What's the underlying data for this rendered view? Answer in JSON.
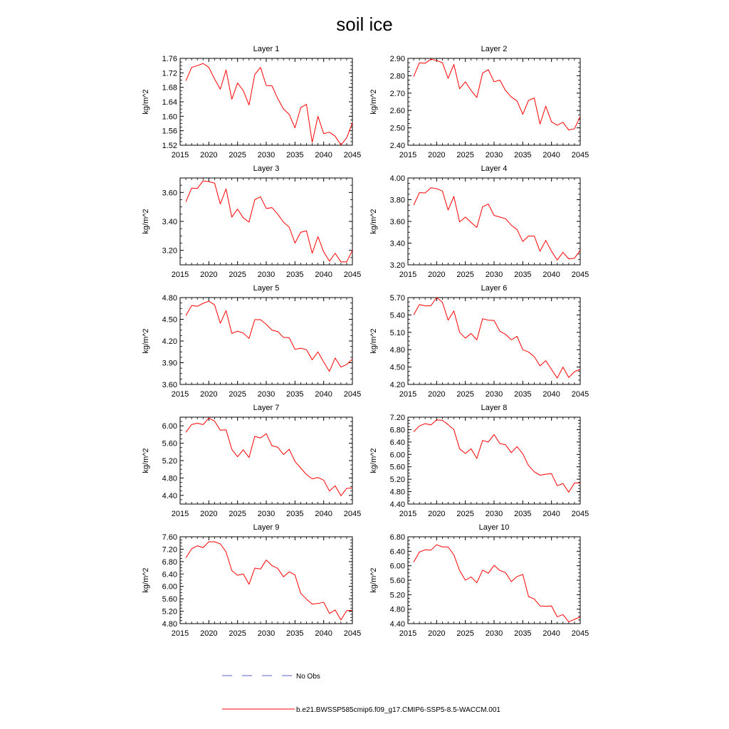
{
  "title": "soil ice",
  "legend": {
    "entries": [
      {
        "label": "No Obs",
        "color": "#5a5fd6",
        "dash": true
      },
      {
        "label": "b.e21.BWSSP585cmip6.f09_g17.CMIP6-SSP5-8.5-WACCM.001",
        "color": "#ff0000",
        "dash": false
      }
    ]
  },
  "chart_data": [
    {
      "type": "line",
      "title": "Layer 1",
      "ylabel": "kg/m^2",
      "xlim": [
        2015,
        2045
      ],
      "ylim": [
        1.52,
        1.76
      ],
      "xticks": [
        2015,
        2020,
        2025,
        2030,
        2035,
        2040,
        2045
      ],
      "yticks": [
        1.52,
        1.56,
        1.6,
        1.64,
        1.68,
        1.72,
        1.76
      ],
      "ydec": 2,
      "series": [
        {
          "color": "#ff0000",
          "x": [
            2016,
            2017,
            2018,
            2019,
            2020,
            2021,
            2022,
            2023,
            2024,
            2025,
            2026,
            2027,
            2028,
            2029,
            2030,
            2031,
            2032,
            2033,
            2034,
            2035,
            2036,
            2037,
            2038,
            2039,
            2040,
            2041,
            2042,
            2043,
            2044,
            2045
          ],
          "values": [
            1.698,
            1.735,
            1.74,
            1.746,
            1.735,
            1.703,
            1.675,
            1.728,
            1.647,
            1.692,
            1.671,
            1.631,
            1.715,
            1.735,
            1.685,
            1.684,
            1.649,
            1.62,
            1.605,
            1.568,
            1.624,
            1.633,
            1.528,
            1.6,
            1.552,
            1.556,
            1.545,
            1.521,
            1.54,
            1.582
          ]
        }
      ]
    },
    {
      "type": "line",
      "title": "Layer 2",
      "ylabel": "kg/m^2",
      "xlim": [
        2015,
        2045
      ],
      "ylim": [
        2.4,
        2.9
      ],
      "xticks": [
        2015,
        2020,
        2025,
        2030,
        2035,
        2040,
        2045
      ],
      "yticks": [
        2.4,
        2.5,
        2.6,
        2.7,
        2.8,
        2.9
      ],
      "ydec": 2,
      "series": [
        {
          "color": "#ff0000",
          "x": [
            2016,
            2017,
            2018,
            2019,
            2020,
            2021,
            2022,
            2023,
            2024,
            2025,
            2026,
            2027,
            2028,
            2029,
            2030,
            2031,
            2032,
            2033,
            2034,
            2035,
            2036,
            2037,
            2038,
            2039,
            2040,
            2041,
            2042,
            2043,
            2044,
            2045
          ],
          "values": [
            2.795,
            2.875,
            2.872,
            2.895,
            2.888,
            2.875,
            2.785,
            2.865,
            2.725,
            2.765,
            2.715,
            2.675,
            2.815,
            2.835,
            2.765,
            2.775,
            2.715,
            2.678,
            2.655,
            2.578,
            2.658,
            2.672,
            2.522,
            2.625,
            2.535,
            2.515,
            2.532,
            2.488,
            2.495,
            2.565
          ]
        }
      ]
    },
    {
      "type": "line",
      "title": "Layer 3",
      "ylabel": "kg/m^2",
      "xlim": [
        2015,
        2045
      ],
      "ylim": [
        3.1,
        3.7
      ],
      "xticks": [
        2015,
        2020,
        2025,
        2030,
        2035,
        2040,
        2045
      ],
      "yticks": [
        3.2,
        3.4,
        3.6
      ],
      "ydec": 2,
      "series": [
        {
          "color": "#ff0000",
          "x": [
            2016,
            2017,
            2018,
            2019,
            2020,
            2021,
            2022,
            2023,
            2024,
            2025,
            2026,
            2027,
            2028,
            2029,
            2030,
            2031,
            2032,
            2033,
            2034,
            2035,
            2036,
            2037,
            2038,
            2039,
            2040,
            2041,
            2042,
            2043,
            2044,
            2045
          ],
          "values": [
            3.535,
            3.63,
            3.628,
            3.68,
            3.675,
            3.665,
            3.52,
            3.625,
            3.43,
            3.485,
            3.425,
            3.395,
            3.55,
            3.57,
            3.49,
            3.495,
            3.45,
            3.395,
            3.36,
            3.25,
            3.325,
            3.335,
            3.18,
            3.295,
            3.19,
            3.125,
            3.18,
            3.12,
            3.12,
            3.2
          ]
        }
      ]
    },
    {
      "type": "line",
      "title": "Layer 4",
      "ylabel": "kg/m^2",
      "xlim": [
        2015,
        2045
      ],
      "ylim": [
        3.2,
        4.0
      ],
      "xticks": [
        2015,
        2020,
        2025,
        2030,
        2035,
        2040,
        2045
      ],
      "yticks": [
        3.2,
        3.4,
        3.6,
        3.8,
        4.0
      ],
      "ydec": 2,
      "series": [
        {
          "color": "#ff0000",
          "x": [
            2016,
            2017,
            2018,
            2019,
            2020,
            2021,
            2022,
            2023,
            2024,
            2025,
            2026,
            2027,
            2028,
            2029,
            2030,
            2031,
            2032,
            2033,
            2034,
            2035,
            2036,
            2037,
            2038,
            2039,
            2040,
            2041,
            2042,
            2043,
            2044,
            2045
          ],
          "values": [
            3.75,
            3.865,
            3.862,
            3.91,
            3.902,
            3.88,
            3.705,
            3.83,
            3.595,
            3.64,
            3.59,
            3.545,
            3.735,
            3.76,
            3.655,
            3.64,
            3.625,
            3.565,
            3.525,
            3.415,
            3.465,
            3.465,
            3.325,
            3.425,
            3.325,
            3.245,
            3.315,
            3.255,
            3.26,
            3.335
          ]
        }
      ]
    },
    {
      "type": "line",
      "title": "Layer 5",
      "ylabel": "kg/m^2",
      "xlim": [
        2015,
        2045
      ],
      "ylim": [
        3.6,
        4.8
      ],
      "xticks": [
        2015,
        2020,
        2025,
        2030,
        2035,
        2040,
        2045
      ],
      "yticks": [
        3.6,
        3.9,
        4.2,
        4.5,
        4.8
      ],
      "ydec": 2,
      "series": [
        {
          "color": "#ff0000",
          "x": [
            2016,
            2017,
            2018,
            2019,
            2020,
            2021,
            2022,
            2023,
            2024,
            2025,
            2026,
            2027,
            2028,
            2029,
            2030,
            2031,
            2032,
            2033,
            2034,
            2035,
            2036,
            2037,
            2038,
            2039,
            2040,
            2041,
            2042,
            2043,
            2044,
            2045
          ],
          "values": [
            4.55,
            4.69,
            4.68,
            4.72,
            4.75,
            4.7,
            4.445,
            4.62,
            4.305,
            4.335,
            4.31,
            4.235,
            4.495,
            4.495,
            4.43,
            4.35,
            4.33,
            4.25,
            4.245,
            4.085,
            4.1,
            4.08,
            3.94,
            4.05,
            3.91,
            3.78,
            3.965,
            3.84,
            3.875,
            3.95
          ]
        }
      ]
    },
    {
      "type": "line",
      "title": "Layer 6",
      "ylabel": "kg/m^2",
      "xlim": [
        2015,
        2045
      ],
      "ylim": [
        4.2,
        5.7
      ],
      "xticks": [
        2015,
        2020,
        2025,
        2030,
        2035,
        2040,
        2045
      ],
      "yticks": [
        4.2,
        4.5,
        4.8,
        5.1,
        5.4,
        5.7
      ],
      "ydec": 2,
      "series": [
        {
          "color": "#ff0000",
          "x": [
            2016,
            2017,
            2018,
            2019,
            2020,
            2021,
            2022,
            2023,
            2024,
            2025,
            2026,
            2027,
            2028,
            2029,
            2030,
            2031,
            2032,
            2033,
            2034,
            2035,
            2036,
            2037,
            2038,
            2039,
            2040,
            2041,
            2042,
            2043,
            2044,
            2045
          ],
          "values": [
            5.4,
            5.58,
            5.555,
            5.56,
            5.7,
            5.62,
            5.31,
            5.47,
            5.1,
            5.0,
            5.08,
            4.97,
            5.335,
            5.31,
            5.305,
            5.12,
            5.065,
            4.97,
            5.03,
            4.8,
            4.76,
            4.68,
            4.52,
            4.61,
            4.46,
            4.31,
            4.5,
            4.32,
            4.42,
            4.46
          ]
        }
      ]
    },
    {
      "type": "line",
      "title": "Layer 7",
      "ylabel": "kg/m^2",
      "xlim": [
        2015,
        2045
      ],
      "ylim": [
        4.2,
        6.2
      ],
      "xticks": [
        2015,
        2020,
        2025,
        2030,
        2035,
        2040,
        2045
      ],
      "yticks": [
        4.4,
        4.8,
        5.2,
        5.6,
        6.0
      ],
      "ydec": 2,
      "series": [
        {
          "color": "#ff0000",
          "x": [
            2016,
            2017,
            2018,
            2019,
            2020,
            2021,
            2022,
            2023,
            2024,
            2025,
            2026,
            2027,
            2028,
            2029,
            2030,
            2031,
            2032,
            2033,
            2034,
            2035,
            2036,
            2037,
            2038,
            2039,
            2040,
            2041,
            2042,
            2043,
            2044,
            2045
          ],
          "values": [
            5.85,
            6.03,
            6.06,
            6.03,
            6.18,
            6.11,
            5.9,
            5.91,
            5.46,
            5.29,
            5.45,
            5.27,
            5.76,
            5.72,
            5.82,
            5.54,
            5.51,
            5.34,
            5.46,
            5.18,
            5.03,
            4.88,
            4.78,
            4.81,
            4.75,
            4.5,
            4.62,
            4.39,
            4.56,
            4.57
          ]
        }
      ]
    },
    {
      "type": "line",
      "title": "Layer 8",
      "ylabel": "kg/m^2",
      "xlim": [
        2015,
        2045
      ],
      "ylim": [
        4.4,
        7.2
      ],
      "xticks": [
        2015,
        2020,
        2025,
        2030,
        2035,
        2040,
        2045
      ],
      "yticks": [
        4.4,
        4.8,
        5.2,
        5.6,
        6.0,
        6.4,
        6.8,
        7.2
      ],
      "ydec": 2,
      "series": [
        {
          "color": "#ff0000",
          "x": [
            2016,
            2017,
            2018,
            2019,
            2020,
            2021,
            2022,
            2023,
            2024,
            2025,
            2026,
            2027,
            2028,
            2029,
            2030,
            2031,
            2032,
            2033,
            2034,
            2035,
            2036,
            2037,
            2038,
            2039,
            2040,
            2041,
            2042,
            2043,
            2044,
            2045
          ],
          "values": [
            6.73,
            6.92,
            6.99,
            6.95,
            7.11,
            7.1,
            6.96,
            6.8,
            6.18,
            6.03,
            6.18,
            5.87,
            6.45,
            6.4,
            6.64,
            6.35,
            6.31,
            6.06,
            6.25,
            6.02,
            5.64,
            5.44,
            5.33,
            5.36,
            5.38,
            4.99,
            5.06,
            4.78,
            5.08,
            5.08
          ]
        }
      ]
    },
    {
      "type": "line",
      "title": "Layer 9",
      "ylabel": "kg/m^2",
      "xlim": [
        2015,
        2045
      ],
      "ylim": [
        4.8,
        7.6
      ],
      "xticks": [
        2015,
        2020,
        2025,
        2030,
        2035,
        2040,
        2045
      ],
      "yticks": [
        4.8,
        5.2,
        5.6,
        6.0,
        6.4,
        6.8,
        7.2,
        7.6
      ],
      "ydec": 2,
      "series": [
        {
          "color": "#ff0000",
          "x": [
            2016,
            2017,
            2018,
            2019,
            2020,
            2021,
            2022,
            2023,
            2024,
            2025,
            2026,
            2027,
            2028,
            2029,
            2030,
            2031,
            2032,
            2033,
            2034,
            2035,
            2036,
            2037,
            2038,
            2039,
            2040,
            2041,
            2042,
            2043,
            2044,
            2045
          ],
          "values": [
            6.92,
            7.21,
            7.31,
            7.25,
            7.44,
            7.44,
            7.37,
            7.11,
            6.51,
            6.36,
            6.4,
            6.07,
            6.59,
            6.56,
            6.85,
            6.67,
            6.58,
            6.31,
            6.47,
            6.37,
            5.78,
            5.59,
            5.43,
            5.45,
            5.49,
            5.13,
            5.24,
            4.92,
            5.22,
            5.23
          ]
        }
      ]
    },
    {
      "type": "line",
      "title": "Layer 10",
      "ylabel": "kg/m^2",
      "xlim": [
        2015,
        2045
      ],
      "ylim": [
        4.4,
        6.8
      ],
      "xticks": [
        2015,
        2020,
        2025,
        2030,
        2035,
        2040,
        2045
      ],
      "yticks": [
        4.4,
        4.8,
        5.2,
        5.6,
        6.0,
        6.4,
        6.8
      ],
      "ydec": 2,
      "series": [
        {
          "color": "#ff0000",
          "x": [
            2016,
            2017,
            2018,
            2019,
            2020,
            2021,
            2022,
            2023,
            2024,
            2025,
            2026,
            2027,
            2028,
            2029,
            2030,
            2031,
            2032,
            2033,
            2034,
            2035,
            2036,
            2037,
            2038,
            2039,
            2040,
            2041,
            2042,
            2043,
            2044,
            2045
          ],
          "values": [
            6.1,
            6.38,
            6.44,
            6.43,
            6.58,
            6.52,
            6.52,
            6.3,
            5.87,
            5.6,
            5.69,
            5.53,
            5.88,
            5.79,
            6.01,
            5.87,
            5.81,
            5.56,
            5.7,
            5.76,
            5.15,
            5.08,
            4.89,
            4.88,
            4.89,
            4.59,
            4.65,
            4.45,
            4.52,
            4.58
          ]
        }
      ]
    }
  ]
}
